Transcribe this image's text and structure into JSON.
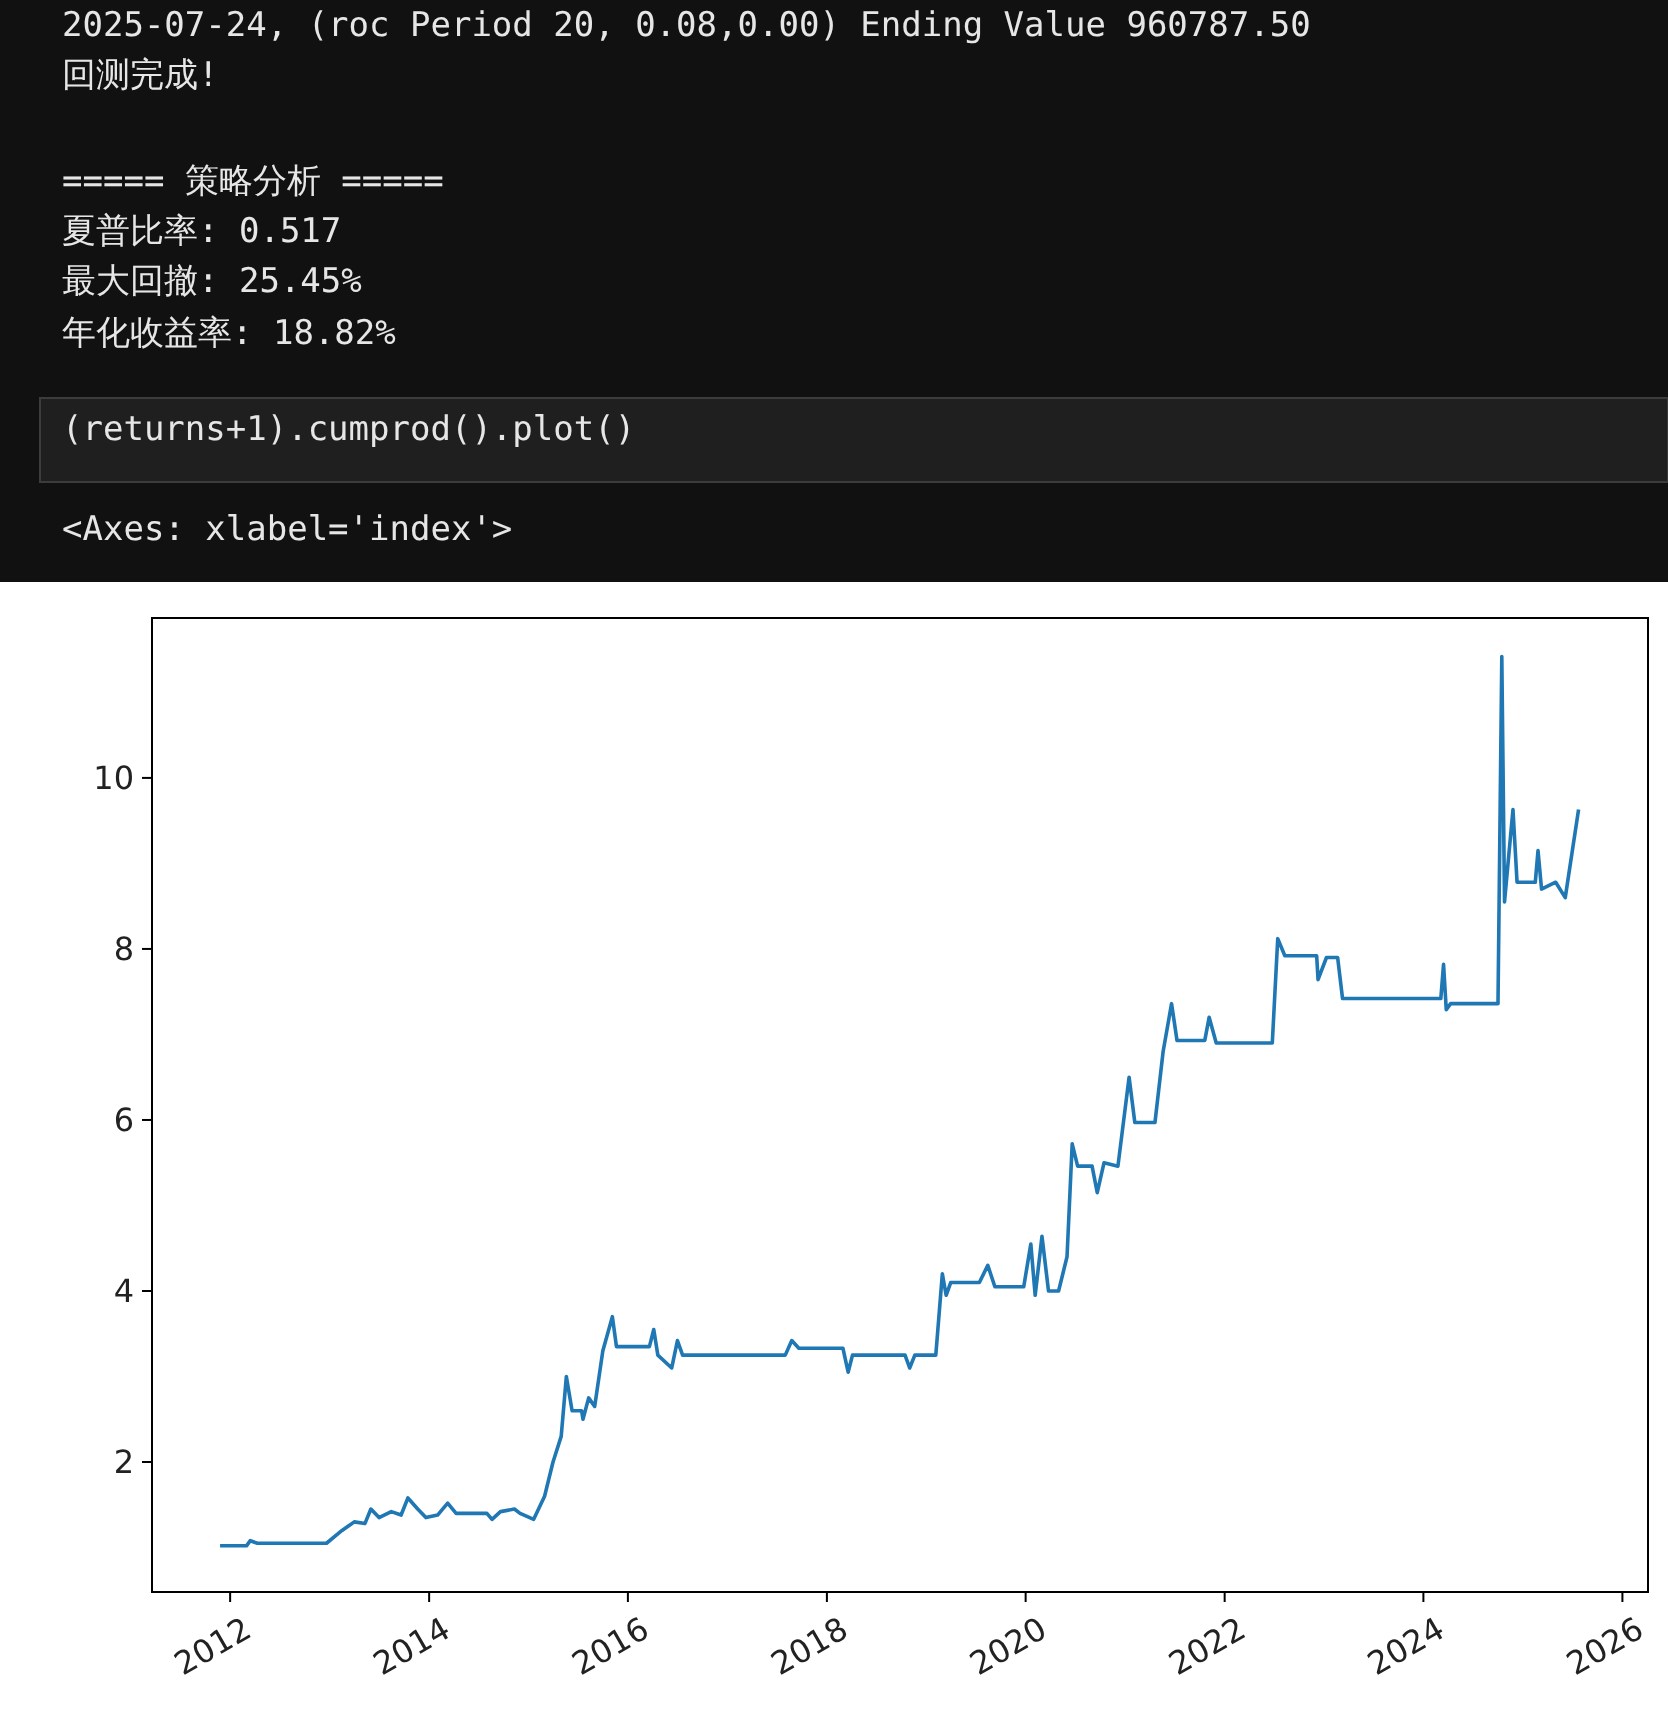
{
  "chart_data": {
    "type": "line",
    "annotations": [
      "2025-07-24, (roc Period 20, 0.08,0.00) Ending Value 960787.50",
      "回测完成!",
      "===== 策略分析 =====",
      "夏普比率: 0.517",
      "最大回撤: 25.45%",
      "年化收益率: 18.82%",
      "(returns+1).cumprod().plot()",
      "<Axes: xlabel='index'>"
    ],
    "x": [
      "2011-11-25",
      "2012-03-01",
      "2012-03-15",
      "2012-04-10",
      "2012-12-20",
      "2013-02-15",
      "2013-04-01",
      "2013-05-10",
      "2013-06-01",
      "2013-07-01",
      "2013-08-15",
      "2013-09-20",
      "2013-10-15",
      "2013-11-20",
      "2013-12-20",
      "2014-02-01",
      "2014-03-10",
      "2014-04-10",
      "2014-08-01",
      "2014-08-20",
      "2014-09-20",
      "2014-11-10",
      "2014-12-01",
      "2015-01-20",
      "2015-03-01",
      "2015-04-01",
      "2015-05-01",
      "2015-05-20",
      "2015-06-10",
      "2015-07-15",
      "2015-07-20",
      "2015-08-10",
      "2015-09-01",
      "2015-10-01",
      "2015-11-05",
      "2015-11-20",
      "2016-03-20",
      "2016-04-05",
      "2016-04-20",
      "2016-06-10",
      "2016-07-01",
      "2016-07-20",
      "2017-08-01",
      "2017-08-25",
      "2017-09-20",
      "2018-03-01",
      "2018-03-20",
      "2018-04-05",
      "2018-10-15",
      "2018-11-01",
      "2018-11-20",
      "2019-02-05",
      "2019-03-01",
      "2019-03-15",
      "2019-04-01",
      "2019-07-15",
      "2019-08-15",
      "2019-09-10",
      "2019-12-25",
      "2020-01-20",
      "2020-02-05",
      "2020-03-01",
      "2020-03-25",
      "2020-05-01",
      "2020-06-01",
      "2020-06-20",
      "2020-07-10",
      "2020-09-01",
      "2020-09-20",
      "2020-10-15",
      "2020-12-05",
      "2021-01-15",
      "2021-02-05",
      "2021-04-20",
      "2021-05-20",
      "2021-06-20",
      "2021-07-10",
      "2021-10-20",
      "2021-11-05",
      "2021-12-01",
      "2022-06-25",
      "2022-07-15",
      "2022-08-10",
      "2022-12-05",
      "2022-12-10",
      "2023-01-10",
      "2023-02-20",
      "2023-03-10",
      "2024-03-05",
      "2024-03-15",
      "2024-03-25",
      "2024-04-10",
      "2024-10-01",
      "2024-10-15",
      "2024-10-25",
      "2024-11-25",
      "2024-12-10",
      "2025-02-15",
      "2025-02-25",
      "2025-03-10",
      "2025-05-01",
      "2025-06-05",
      "2025-07-24"
    ],
    "series": [
      {
        "color": "#1f77b4",
        "values": [
          1.02,
          1.02,
          1.08,
          1.05,
          1.05,
          1.2,
          1.3,
          1.28,
          1.45,
          1.35,
          1.42,
          1.38,
          1.58,
          1.45,
          1.35,
          1.38,
          1.52,
          1.4,
          1.4,
          1.33,
          1.42,
          1.45,
          1.4,
          1.33,
          1.6,
          2.0,
          2.3,
          3.0,
          2.6,
          2.6,
          2.5,
          2.75,
          2.65,
          3.3,
          3.7,
          3.35,
          3.35,
          3.55,
          3.25,
          3.1,
          3.42,
          3.25,
          3.25,
          3.42,
          3.33,
          3.33,
          3.05,
          3.25,
          3.25,
          3.1,
          3.25,
          3.25,
          4.2,
          3.95,
          4.1,
          4.1,
          4.3,
          4.05,
          4.05,
          4.55,
          3.95,
          4.64,
          4.0,
          4.0,
          4.4,
          5.72,
          5.46,
          5.46,
          5.15,
          5.5,
          5.46,
          6.5,
          5.97,
          5.97,
          6.8,
          7.36,
          6.93,
          6.93,
          7.2,
          6.9,
          6.9,
          8.12,
          7.92,
          7.92,
          7.64,
          7.9,
          7.9,
          7.42,
          7.42,
          7.82,
          7.29,
          7.36,
          7.36,
          11.42,
          8.55,
          9.63,
          8.78,
          8.78,
          9.15,
          8.7,
          8.78,
          8.6,
          9.63
        ]
      }
    ],
    "xlim": [
      "2011-03-20",
      "2026-04-05"
    ],
    "xticks": [
      {
        "value": "2012",
        "label": "2012"
      },
      {
        "value": "2014",
        "label": "2014"
      },
      {
        "value": "2016",
        "label": "2016"
      },
      {
        "value": "2018",
        "label": "2018"
      },
      {
        "value": "2020",
        "label": "2020"
      },
      {
        "value": "2022",
        "label": "2022"
      },
      {
        "value": "2024",
        "label": "2024"
      },
      {
        "value": "2026",
        "label": "2026"
      }
    ],
    "ylim": [
      0.48,
      11.87
    ],
    "yticks": [
      2,
      4,
      6,
      8,
      10
    ],
    "grid": false
  }
}
